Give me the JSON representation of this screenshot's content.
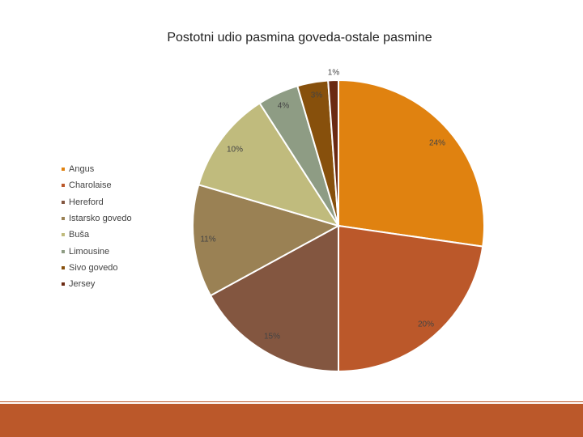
{
  "chart_data": {
    "type": "pie",
    "title": "Postotni udio pasmina goveda-ostale pasmine",
    "slices": [
      {
        "label": "Angus",
        "value": 24,
        "data_label": "24%",
        "color": "#E08210"
      },
      {
        "label": "Charolaise",
        "value": 20,
        "data_label": "20%",
        "color": "#BB582A"
      },
      {
        "label": "Hereford",
        "value": 15,
        "data_label": "15%",
        "color": "#835640"
      },
      {
        "label": "Istarsko govedo",
        "value": 11,
        "data_label": "11%",
        "color": "#9A8154"
      },
      {
        "label": "Buša",
        "value": 10,
        "data_label": "10%",
        "color": "#C0BB7D"
      },
      {
        "label": "Limousine",
        "value": 4,
        "data_label": "4%",
        "color": "#8E9C84"
      },
      {
        "label": "Sivo govedo",
        "value": 3,
        "data_label": "3%",
        "color": "#87500C"
      },
      {
        "label": "Jersey",
        "value": 1,
        "data_label": "1%",
        "color": "#6B2A12"
      }
    ],
    "legend_position": "left"
  },
  "footer": {
    "color": "#BB582A"
  }
}
